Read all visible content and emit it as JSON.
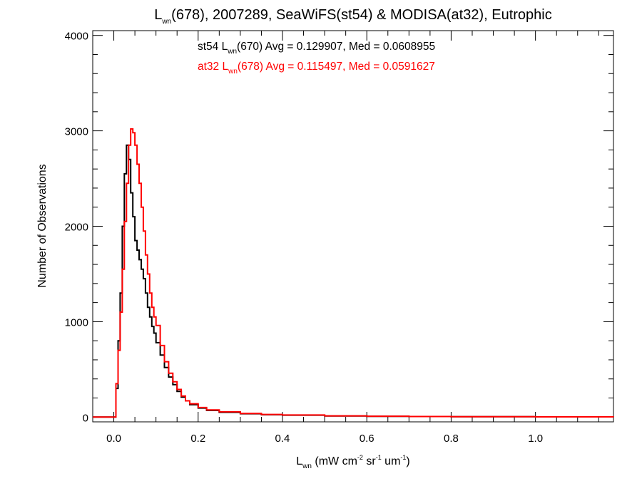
{
  "chart_data": {
    "type": "histogram",
    "title": {
      "prefix": "L",
      "sub": "wn",
      "rest": "(678), 2007289, SeaWiFS(st54) & MODISA(at32), Eutrophic"
    },
    "xlabel": {
      "prefix": "L",
      "sub": "wn",
      "rest": " (mW cm",
      "sup1": "-2",
      "mid": " sr",
      "sup2": "-1",
      "mid2": " um",
      "sup3": "-1",
      "end": ")"
    },
    "ylabel": "Number of Observations",
    "xlim": [
      -0.05,
      1.185
    ],
    "ylim": [
      -50,
      4050
    ],
    "x_ticks": [
      {
        "value": 0.0,
        "label": "0.0"
      },
      {
        "value": 0.2,
        "label": "0.2"
      },
      {
        "value": 0.4,
        "label": "0.4"
      },
      {
        "value": 0.6,
        "label": "0.6"
      },
      {
        "value": 0.8,
        "label": "0.8"
      },
      {
        "value": 1.0,
        "label": "1.0"
      }
    ],
    "x_minor_step": 0.05,
    "y_ticks": [
      {
        "value": 0,
        "label": "0"
      },
      {
        "value": 1000,
        "label": "1000"
      },
      {
        "value": 2000,
        "label": "2000"
      },
      {
        "value": 3000,
        "label": "3000"
      },
      {
        "value": 4000,
        "label": "4000"
      }
    ],
    "y_minor_step": 200,
    "annotations": [
      {
        "color": "#000000",
        "prefix": "st54 L",
        "sub": "wn",
        "rest": "(670) Avg = 0.129907, Med = 0.0608955"
      },
      {
        "color": "#ff0000",
        "prefix": "at32 L",
        "sub": "wn",
        "rest": "(678) Avg = 0.115497, Med = 0.0591627"
      }
    ],
    "series": [
      {
        "color": "#000000",
        "x": [
          -0.05,
          0.0,
          0.005,
          0.01,
          0.015,
          0.02,
          0.025,
          0.03,
          0.035,
          0.04,
          0.045,
          0.05,
          0.055,
          0.06,
          0.065,
          0.07,
          0.075,
          0.08,
          0.085,
          0.09,
          0.095,
          0.1,
          0.11,
          0.12,
          0.13,
          0.14,
          0.15,
          0.16,
          0.17,
          0.18,
          0.2,
          0.22,
          0.25,
          0.3,
          0.35,
          0.4,
          0.5,
          0.6,
          0.7,
          0.8,
          1.0,
          1.185
        ],
        "values": [
          0,
          0,
          300,
          800,
          1300,
          2000,
          2550,
          2850,
          2700,
          2350,
          2100,
          1850,
          1750,
          1650,
          1550,
          1450,
          1300,
          1150,
          1050,
          950,
          880,
          780,
          650,
          520,
          420,
          340,
          270,
          210,
          170,
          130,
          95,
          70,
          50,
          35,
          25,
          20,
          12,
          8,
          6,
          4,
          2,
          0
        ]
      },
      {
        "color": "#ff0000",
        "x": [
          -0.05,
          0.0,
          0.005,
          0.01,
          0.015,
          0.02,
          0.025,
          0.03,
          0.035,
          0.04,
          0.045,
          0.05,
          0.055,
          0.06,
          0.065,
          0.07,
          0.075,
          0.08,
          0.085,
          0.09,
          0.095,
          0.1,
          0.11,
          0.12,
          0.13,
          0.14,
          0.15,
          0.16,
          0.17,
          0.18,
          0.2,
          0.22,
          0.25,
          0.3,
          0.35,
          0.4,
          0.5,
          0.6,
          0.7,
          0.8,
          1.0,
          1.185
        ],
        "values": [
          0,
          0,
          350,
          700,
          1100,
          1550,
          2050,
          2450,
          2850,
          3020,
          2980,
          2850,
          2650,
          2450,
          2200,
          1950,
          1700,
          1500,
          1300,
          1150,
          1050,
          960,
          750,
          580,
          460,
          370,
          290,
          220,
          170,
          140,
          100,
          75,
          55,
          38,
          28,
          22,
          13,
          9,
          6,
          4,
          2,
          0
        ]
      }
    ]
  }
}
